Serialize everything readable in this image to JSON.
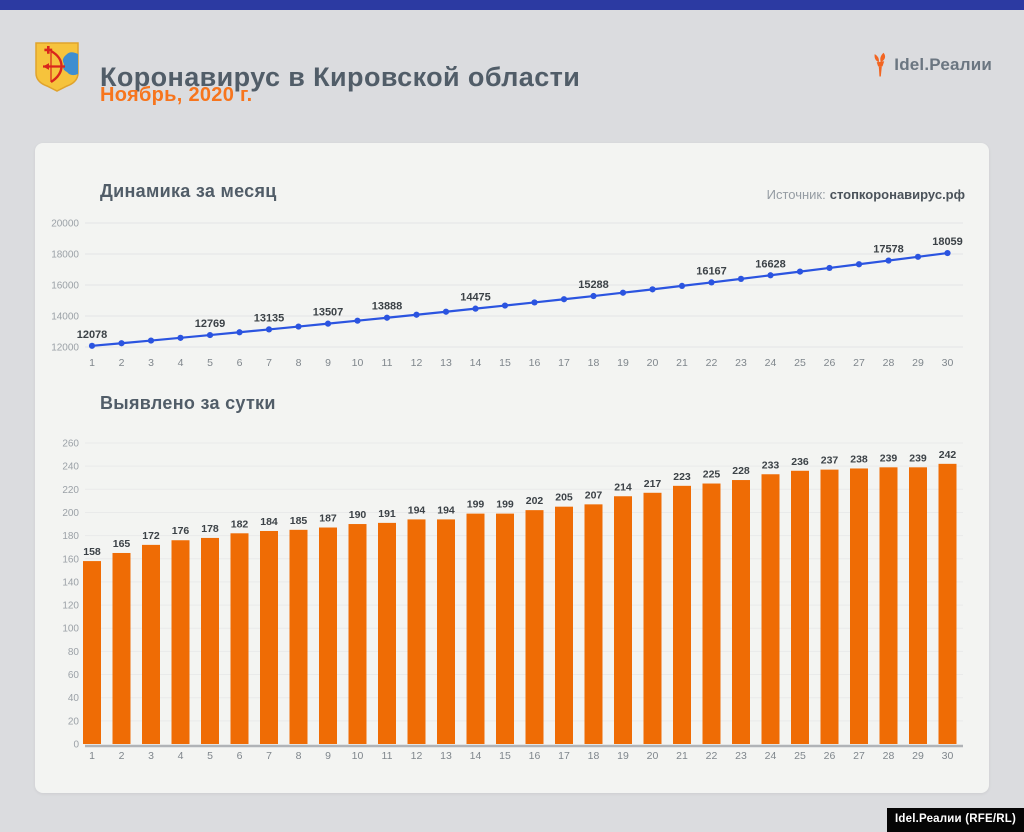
{
  "header": {
    "title": "Коронавирус в Кировской области",
    "subtitle": "Ноябрь, 2020 г.",
    "logo_text": "Idel.Реалии"
  },
  "footer": {
    "watermark": "Idel.Реалии (RFE/RL)"
  },
  "colors": {
    "accent_bar": "#2c3aa2",
    "subtitle_orange": "#f7751d",
    "line_blue": "#2b54e0",
    "bar_orange": "#ef6c05",
    "heading_gray": "#515d68"
  },
  "chart_data": [
    {
      "type": "line",
      "title": "Динамика за месяц",
      "source_label": "Источник:",
      "source_value": "стопкоронавирус.рф",
      "x": [
        1,
        2,
        3,
        4,
        5,
        6,
        7,
        8,
        9,
        10,
        11,
        12,
        13,
        14,
        15,
        16,
        17,
        18,
        19,
        20,
        21,
        22,
        23,
        24,
        25,
        26,
        27,
        28,
        29,
        30
      ],
      "values": [
        12078,
        12243,
        12415,
        12591,
        12769,
        12951,
        13135,
        13320,
        13507,
        13697,
        13888,
        14082,
        14276,
        14475,
        14674,
        14876,
        15081,
        15288,
        15502,
        15719,
        15942,
        16167,
        16395,
        16628,
        16864,
        17101,
        17339,
        17578,
        17817,
        18059
      ],
      "labeled_days": [
        1,
        5,
        7,
        9,
        11,
        14,
        18,
        22,
        24,
        28,
        30
      ],
      "ylim": [
        12000,
        20000
      ],
      "yticks": [
        12000,
        14000,
        16000,
        18000,
        20000
      ],
      "line_color": "#2b54e0",
      "grid": true,
      "legend": "none"
    },
    {
      "type": "bar",
      "title": "Выявлено за сутки",
      "x": [
        1,
        2,
        3,
        4,
        5,
        6,
        7,
        8,
        9,
        10,
        11,
        12,
        13,
        14,
        15,
        16,
        17,
        18,
        19,
        20,
        21,
        22,
        23,
        24,
        25,
        26,
        27,
        28,
        29,
        30
      ],
      "values": [
        158,
        165,
        172,
        176,
        178,
        182,
        184,
        185,
        187,
        190,
        191,
        194,
        194,
        199,
        199,
        202,
        205,
        207,
        214,
        217,
        223,
        225,
        228,
        233,
        236,
        237,
        238,
        239,
        239,
        242
      ],
      "ylim": [
        0,
        260
      ],
      "ytick_step": 20,
      "bar_color": "#ef6c05",
      "grid": true,
      "legend": "none"
    }
  ]
}
